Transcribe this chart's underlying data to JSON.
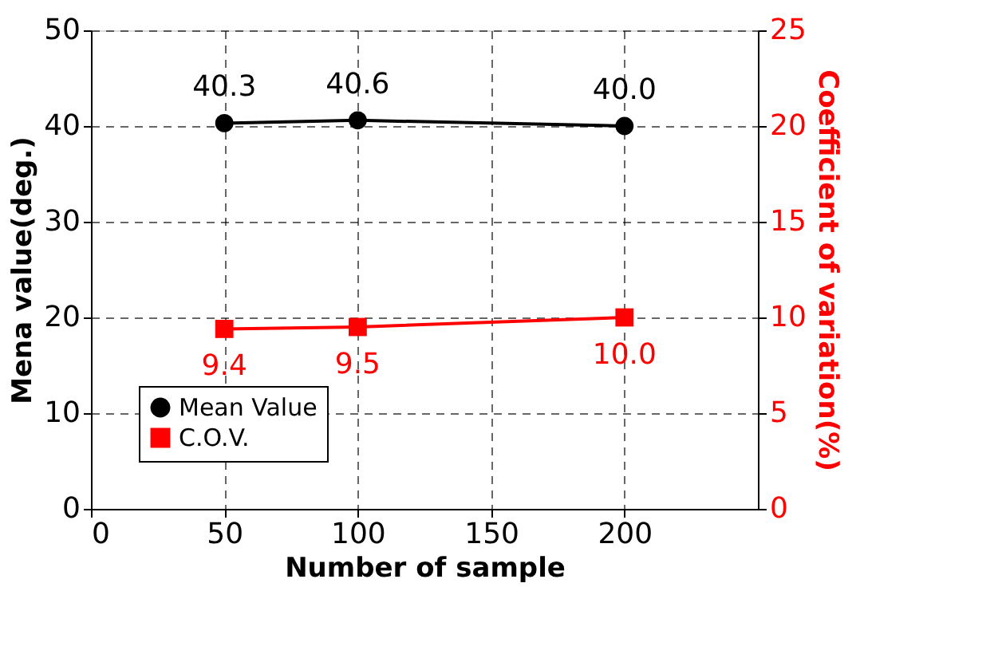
{
  "chart_data": {
    "type": "line",
    "xlabel": "Number of sample",
    "ylabel": "Mena value(deg.)",
    "y2label": "Coefficient of variation(%)",
    "x": [
      50,
      100,
      200
    ],
    "series": [
      {
        "name": "Mean Value",
        "color": "#000000",
        "values": [
          40.3,
          40.6,
          40.0
        ],
        "value_labels": [
          "40.3",
          "40.6",
          "40.0"
        ],
        "marker": "circle"
      },
      {
        "name": "C.O.V.",
        "color": "#ff0000",
        "values": [
          9.4,
          9.5,
          10.0
        ],
        "value_labels": [
          "9.4",
          "9.5",
          "10.0"
        ],
        "marker": "square",
        "axis": "y2"
      }
    ],
    "xlim": [
      0,
      250
    ],
    "xticks": [
      0,
      50,
      100,
      150,
      200
    ],
    "ylim": [
      0,
      50
    ],
    "yticks": [
      0,
      10,
      20,
      30,
      40,
      50
    ],
    "y2lim": [
      0,
      25
    ],
    "y2ticks": [
      0,
      5,
      10,
      15,
      20,
      25
    ],
    "grid": true,
    "legend": "bottom left",
    "line_style": "solid"
  }
}
